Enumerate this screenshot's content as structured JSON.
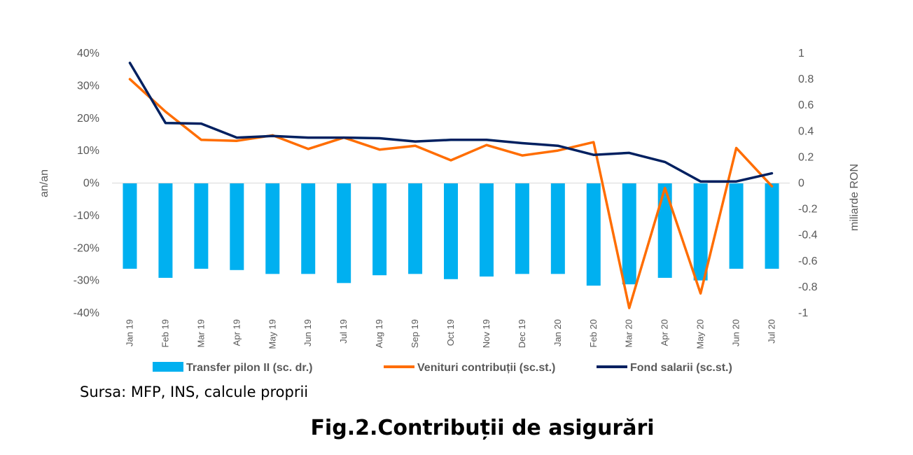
{
  "source_text": "Sursa: MFP, INS, calcule proprii",
  "figure_title": "Fig.2.Contribuții de asigurări",
  "chart_data": {
    "type": "bar",
    "categories": [
      "Jan 19",
      "Feb 19",
      "Mar 19",
      "Apr 19",
      "May 19",
      "Jun 19",
      "Jul 19",
      "Aug 19",
      "Sep 19",
      "Oct 19",
      "Nov 19",
      "Dec 19",
      "Jan 20",
      "Feb 20",
      "Mar 20",
      "Apr 20",
      "May 20",
      "Jun 20",
      "Jul 20"
    ],
    "ylabel_left": "an/an",
    "ylabel_right": "miliarde RON",
    "ylim_left": [
      -40,
      40
    ],
    "ylim_right": [
      -1,
      1
    ],
    "yticks_left": [
      "40%",
      "30%",
      "20%",
      "10%",
      "0%",
      "-10%",
      "-20%",
      "-30%",
      "-40%"
    ],
    "yticks_right": [
      "1",
      "0.8",
      "0.6",
      "0.4",
      "0.2",
      "0",
      "-0.2",
      "-0.4",
      "-0.6",
      "-0.8",
      "-1"
    ],
    "legend_position": "bottom",
    "grid": false,
    "series": [
      {
        "name": "Transfer pilon II (sc. dr.)",
        "type": "bar",
        "axis": "right",
        "color": "#00B0F0",
        "values": [
          -0.66,
          -0.73,
          -0.66,
          -0.67,
          -0.7,
          -0.7,
          -0.77,
          -0.71,
          -0.7,
          -0.74,
          -0.72,
          -0.7,
          -0.7,
          -0.79,
          -0.78,
          -0.73,
          -0.75,
          -0.66,
          -0.66
        ]
      },
      {
        "name": "Venituri contribuții (sc.st.)",
        "type": "line",
        "axis": "left",
        "color": "#FF6D00",
        "values": [
          32,
          22,
          13.3,
          13,
          14.7,
          10.5,
          14,
          10.3,
          11.5,
          7,
          11.7,
          8.5,
          10,
          12.6,
          -38.5,
          -1.5,
          -34,
          10.8,
          -1
        ]
      },
      {
        "name": "Fond salarii (sc.st.)",
        "type": "line",
        "axis": "left",
        "color": "#002060",
        "values": [
          37,
          18.5,
          18.3,
          14,
          14.5,
          14,
          14,
          13.8,
          12.8,
          13.3,
          13.3,
          12.3,
          11.5,
          8.7,
          9.3,
          6.5,
          0.5,
          0.5,
          3
        ]
      }
    ]
  }
}
